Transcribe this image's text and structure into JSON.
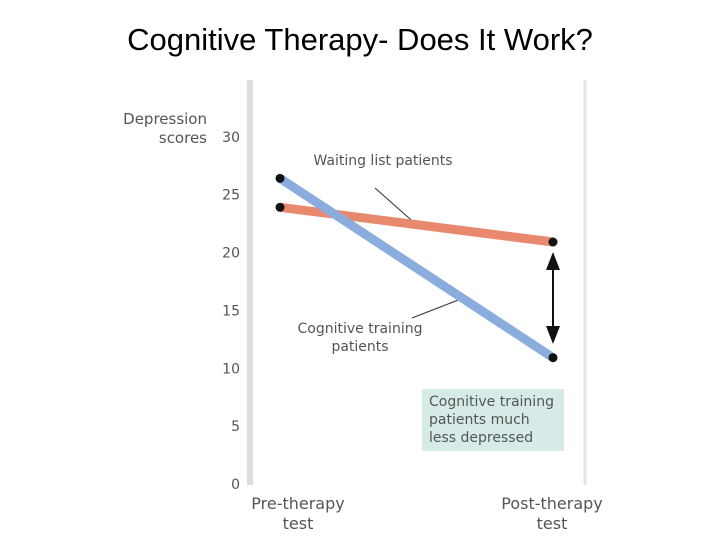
{
  "chart_data": {
    "type": "line",
    "title": "Cognitive Therapy- Does It Work?",
    "ylabel": "Depression scores",
    "categories": [
      "Pre-therapy test",
      "Post-therapy test"
    ],
    "series": [
      {
        "name": "Waiting list patients",
        "color": "#e8896e",
        "values": [
          24,
          21
        ]
      },
      {
        "name": "Cognitive training patients",
        "color": "#8badde",
        "values": [
          26.5,
          11
        ]
      }
    ],
    "annotation": "Cognitive training patients much less depressed",
    "ylim": [
      0,
      35
    ],
    "yticks": [
      0,
      5,
      10,
      15,
      20,
      25,
      30
    ],
    "grid": false
  }
}
